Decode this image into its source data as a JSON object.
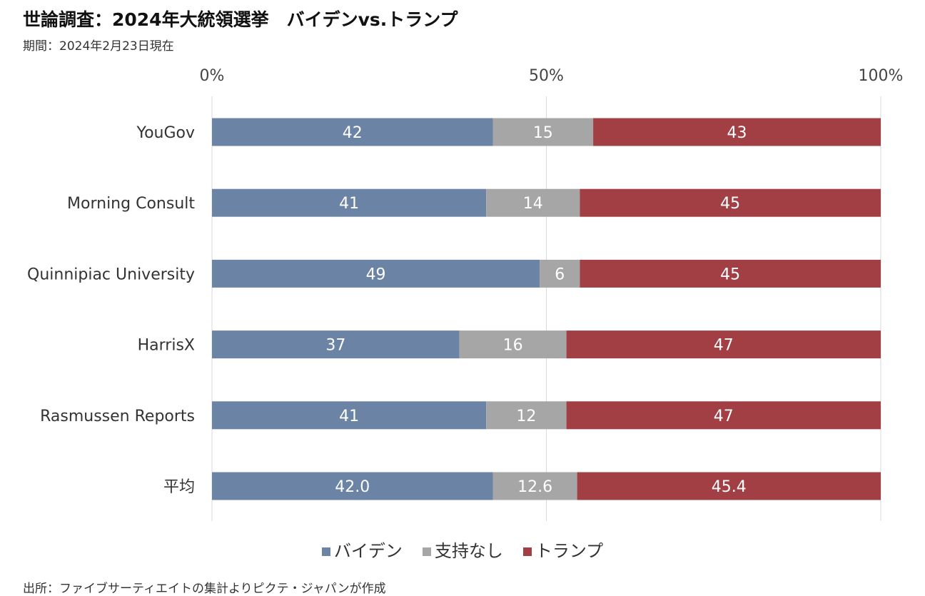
{
  "header": {
    "title": "世論調査：2024年大統領選挙　バイデンvs.トランプ",
    "subtitle": "期間：2024年2月23日現在"
  },
  "footer": {
    "source": "出所：ファイブサーティエイトの集計よりピクテ・ジャパンが作成"
  },
  "chart_data": {
    "type": "bar",
    "orientation": "horizontal",
    "stacked": true,
    "xlim": [
      0,
      100
    ],
    "x_ticks": [
      {
        "value": 0,
        "label": "0%"
      },
      {
        "value": 50,
        "label": "50%"
      },
      {
        "value": 100,
        "label": "100%"
      }
    ],
    "grid": true,
    "legend_position": "bottom",
    "categories": [
      "YouGov",
      "Morning Consult",
      "Quinnipiac University",
      "HarrisX",
      "Rasmussen Reports",
      "平均"
    ],
    "series": [
      {
        "name": "バイデン",
        "color": "#6B84A5",
        "values": [
          42,
          41,
          49,
          37,
          41,
          42.0
        ],
        "labels": [
          "42",
          "41",
          "49",
          "37",
          "41",
          "42.0"
        ]
      },
      {
        "name": "支持なし",
        "color": "#A6A6A6",
        "values": [
          15,
          14,
          6,
          16,
          12,
          12.6
        ],
        "labels": [
          "15",
          "14",
          "6",
          "16",
          "12",
          "12.6"
        ]
      },
      {
        "name": "トランプ",
        "color": "#A13F45",
        "values": [
          43,
          45,
          45,
          47,
          47,
          45.4
        ],
        "labels": [
          "43",
          "45",
          "45",
          "47",
          "47",
          "45.4"
        ]
      }
    ]
  }
}
